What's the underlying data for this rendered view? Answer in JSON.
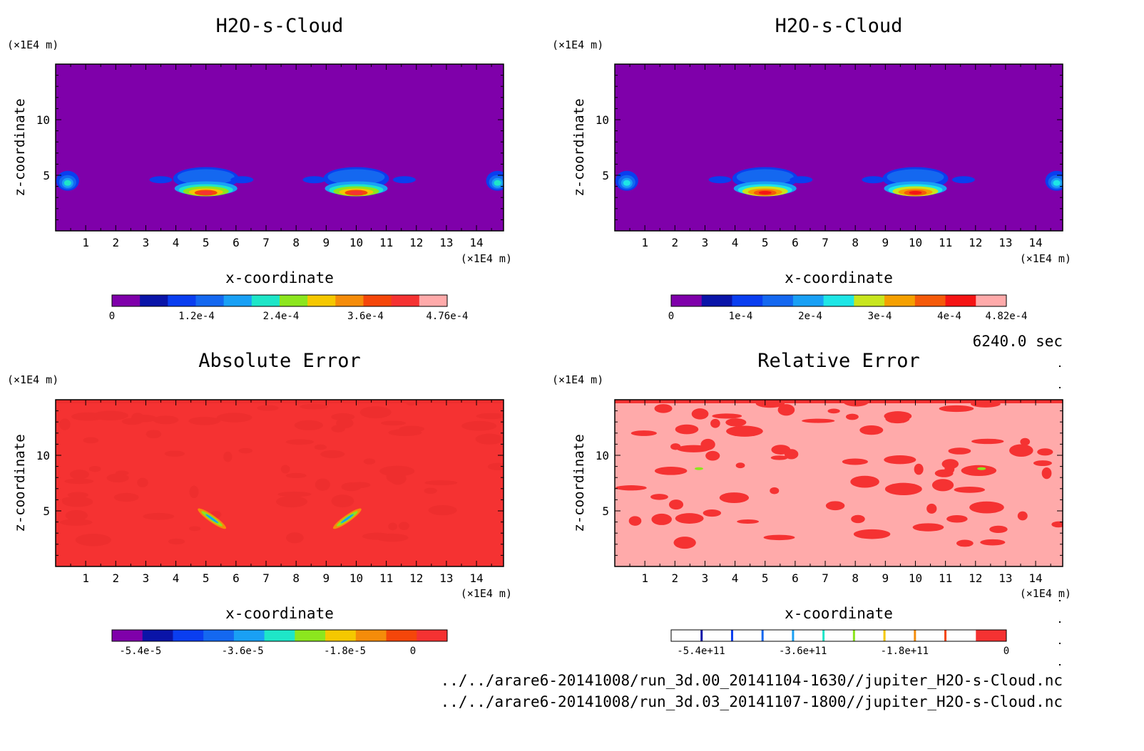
{
  "panels": [
    {
      "title": "H2O-s-Cloud",
      "x_unit": "(×1E4 m)",
      "z_unit": "(×1E4 m)",
      "xlabel": "x-coordinate",
      "ylabel": "z-coordinate",
      "background": "#7f00aa",
      "colorbar": {
        "colors": [
          "#7f00aa",
          "#0a14a8",
          "#0a3ef0",
          "#1468f0",
          "#19a0f5",
          "#1ee6c8",
          "#8ce61e",
          "#f5c800",
          "#f58c0a",
          "#f5460a",
          "#f53232",
          "#ffaaaa"
        ],
        "tick_labels": [
          "0",
          "1.2e-4",
          "2.4e-4",
          "3.6e-4",
          "4.76e-4"
        ]
      }
    },
    {
      "title": "H2O-s-Cloud",
      "x_unit": "(×1E4 m)",
      "z_unit": "(×1E4 m)",
      "xlabel": "x-coordinate",
      "ylabel": "z-coordinate",
      "background": "#7f00aa",
      "colorbar": {
        "colors": [
          "#7f00aa",
          "#0a14a8",
          "#0a3ef0",
          "#1468f0",
          "#19a0f5",
          "#1ee6e6",
          "#c8e61e",
          "#f5a000",
          "#f55a0a",
          "#f51414",
          "#ffaaaa"
        ],
        "tick_labels": [
          "0",
          "1e-4",
          "2e-4",
          "3e-4",
          "4e-4",
          "4.82e-4"
        ]
      }
    },
    {
      "title": "Absolute Error",
      "x_unit": "(×1E4 m)",
      "z_unit": "(×1E4 m)",
      "xlabel": "x-coordinate",
      "ylabel": "z-coordinate",
      "background": "#f53232",
      "colorbar": {
        "colors": [
          "#7f00aa",
          "#0a14a8",
          "#0a3ef0",
          "#1468f0",
          "#19a0f5",
          "#1ee6c8",
          "#8ce61e",
          "#f5c800",
          "#f58c0a",
          "#f5460a",
          "#f53232"
        ],
        "tick_labels": [
          "-5.4e-5",
          "-3.6e-5",
          "-1.8e-5",
          "0"
        ]
      }
    },
    {
      "title": "Relative Error",
      "x_unit": "(×1E4 m)",
      "z_unit": "(×1E4 m)",
      "xlabel": "x-coordinate",
      "ylabel": "z-coordinate",
      "background": "#ffaaaa",
      "colorbar": {
        "colors": [
          "#ffffff",
          "#ffffff",
          "#ffffff",
          "#ffffff",
          "#ffffff",
          "#ffffff",
          "#ffffff",
          "#ffffff",
          "#ffffff",
          "#ffffff",
          "#f53232"
        ],
        "tick_labels": [
          "-5.4e+11",
          "-3.6e+11",
          "-1.8e+11",
          "0"
        ]
      }
    }
  ],
  "time_label": "6240.0 sec",
  "file_paths": [
    "../../arare6-20141008/run_3d.00_20141104-1630//jupiter_H2O-s-Cloud.nc",
    "../../arare6-20141008/run_3d.03_20141107-1800//jupiter_H2O-s-Cloud.nc"
  ],
  "chart_data": [
    {
      "type": "heatmap",
      "title": "H2O-s-Cloud",
      "xlabel": "x-coordinate",
      "ylabel": "z-coordinate",
      "x_ticks": [
        1,
        2,
        3,
        4,
        5,
        6,
        7,
        8,
        9,
        10,
        11,
        12,
        13,
        14
      ],
      "y_ticks": [
        5,
        10
      ],
      "xlim": [
        0,
        14.9
      ],
      "ylim": [
        0,
        15
      ],
      "colorbar_ticks": [
        0,
        0.00012,
        0.00024,
        0.00036,
        0.000476
      ],
      "features": [
        {
          "x": 0.4,
          "z": 4.5,
          "level": 0.4
        },
        {
          "x": 5.0,
          "z": 4.2,
          "level": 0.95
        },
        {
          "x": 10.0,
          "z": 4.2,
          "level": 0.95
        },
        {
          "x": 14.7,
          "z": 4.5,
          "level": 0.4
        }
      ]
    },
    {
      "type": "heatmap",
      "title": "H2O-s-Cloud",
      "xlabel": "x-coordinate",
      "ylabel": "z-coordinate",
      "x_ticks": [
        1,
        2,
        3,
        4,
        5,
        6,
        7,
        8,
        9,
        10,
        11,
        12,
        13,
        14
      ],
      "y_ticks": [
        5,
        10
      ],
      "xlim": [
        0,
        14.9
      ],
      "ylim": [
        0,
        15
      ],
      "colorbar_ticks": [
        0,
        0.0001,
        0.0002,
        0.0003,
        0.0004,
        0.000482
      ],
      "features": [
        {
          "x": 0.4,
          "z": 4.5,
          "level": 0.4
        },
        {
          "x": 5.0,
          "z": 4.2,
          "level": 0.95
        },
        {
          "x": 10.0,
          "z": 4.2,
          "level": 0.95
        },
        {
          "x": 14.7,
          "z": 4.5,
          "level": 0.4
        }
      ]
    },
    {
      "type": "heatmap",
      "title": "Absolute Error",
      "xlabel": "x-coordinate",
      "ylabel": "z-coordinate",
      "x_ticks": [
        1,
        2,
        3,
        4,
        5,
        6,
        7,
        8,
        9,
        10,
        11,
        12,
        13,
        14
      ],
      "y_ticks": [
        5,
        10
      ],
      "xlim": [
        0,
        14.9
      ],
      "ylim": [
        0,
        15
      ],
      "colorbar_ticks": [
        -5.4e-05,
        -3.6e-05,
        -1.8e-05,
        0
      ]
    },
    {
      "type": "heatmap",
      "title": "Relative Error",
      "xlabel": "x-coordinate",
      "ylabel": "z-coordinate",
      "x_ticks": [
        1,
        2,
        3,
        4,
        5,
        6,
        7,
        8,
        9,
        10,
        11,
        12,
        13,
        14
      ],
      "y_ticks": [
        5,
        10
      ],
      "xlim": [
        0,
        14.9
      ],
      "ylim": [
        0,
        15
      ],
      "colorbar_ticks": [
        -540000000000,
        -360000000000,
        -180000000000,
        0
      ]
    }
  ]
}
